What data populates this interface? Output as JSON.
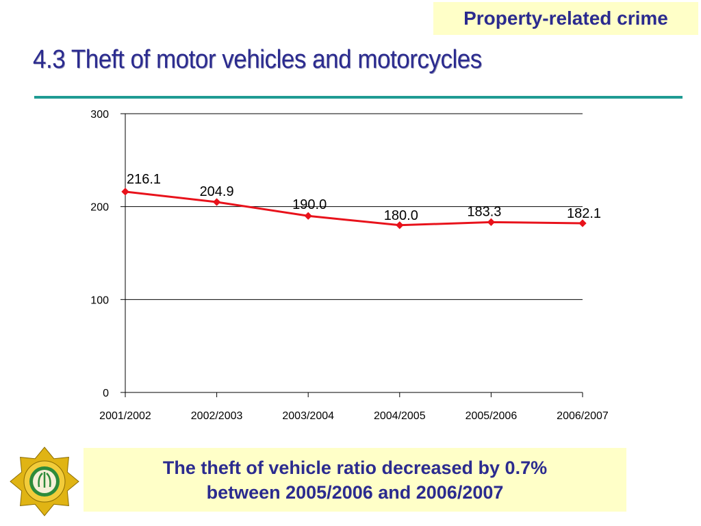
{
  "header": {
    "category_tag": "Property-related crime",
    "title": "4.3  Theft of motor vehicles and motorcycles"
  },
  "chart_data": {
    "type": "line",
    "categories": [
      "2001/2002",
      "2002/2003",
      "2003/2004",
      "2004/2005",
      "2005/2006",
      "2006/2007"
    ],
    "values": [
      216.1,
      204.9,
      190.0,
      180.0,
      183.3,
      182.1
    ],
    "data_labels": [
      "216.1",
      "204.9",
      "190.0",
      "180.0",
      "183.3",
      "182.1"
    ],
    "ylim": [
      0,
      300
    ],
    "yticks": [
      0,
      100,
      200,
      300
    ],
    "ytick_labels": [
      "0",
      "100",
      "200",
      "300"
    ],
    "grid": true,
    "line_color": "#e8121b",
    "title": "",
    "xlabel": "",
    "ylabel": ""
  },
  "caption": {
    "line1": "The theft of vehicle ratio decreased by 0.7%",
    "line2": "between 2005/2006 and 2006/2007"
  },
  "colors": {
    "title_text": "#2b2b8f",
    "highlight_box": "#ffffc8",
    "rule": "#1f9b93",
    "emblem_gold": "#e0b414",
    "emblem_green": "#2e8b3a"
  },
  "icons": {
    "logo": "police-star-emblem-icon"
  }
}
